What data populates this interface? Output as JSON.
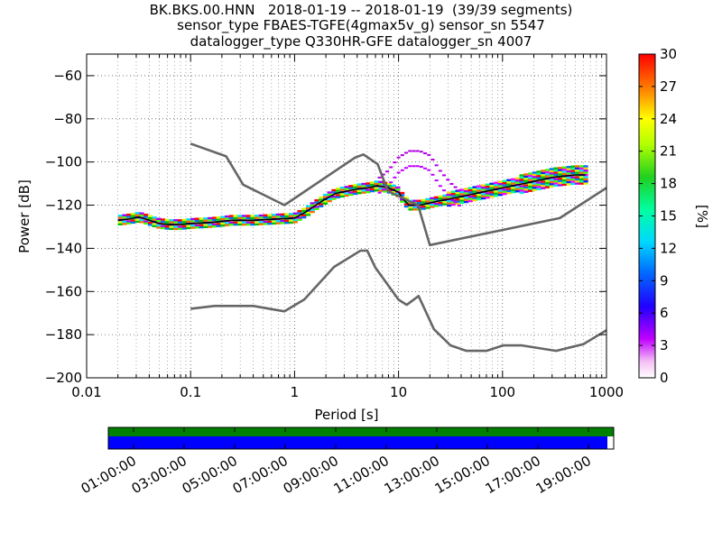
{
  "title": {
    "line1": "BK.BKS.00.HNN   2018-01-19 -- 2018-01-19  (39/39 segments)",
    "line2": "sensor_type FBAES-TGFE(4gmax5v_g) sensor_sn 5547",
    "line3": "datalogger_type Q330HR-GFE datalogger_sn 4007"
  },
  "colors": {
    "model_curves": "#666666",
    "mode_line": "#000000",
    "timeline_coverage_top": "#008000",
    "timeline_coverage_bottom": "#0000ff"
  },
  "chart_data": {
    "type": "heatmap",
    "xlabel": "Period [s]",
    "ylabel": "Power [dB]",
    "xscale": "log",
    "xlim": [
      0.01,
      1000
    ],
    "ylim": [
      -200,
      -50
    ],
    "xticks": [
      {
        "value": 0.01,
        "label": "0.01"
      },
      {
        "value": 0.1,
        "label": "0.1"
      },
      {
        "value": 1,
        "label": "1"
      },
      {
        "value": 10,
        "label": "10"
      },
      {
        "value": 100,
        "label": "100"
      },
      {
        "value": 1000,
        "label": "1000"
      }
    ],
    "yticks": [
      {
        "value": -60,
        "label": "−60"
      },
      {
        "value": -80,
        "label": "−80"
      },
      {
        "value": -100,
        "label": "−100"
      },
      {
        "value": -120,
        "label": "−120"
      },
      {
        "value": -140,
        "label": "−140"
      },
      {
        "value": -160,
        "label": "−160"
      },
      {
        "value": -180,
        "label": "−180"
      },
      {
        "value": -200,
        "label": "−200"
      }
    ],
    "grid": true,
    "colorbar": {
      "label": "[%]",
      "range": [
        0,
        30
      ],
      "ticks": [
        {
          "value": 0,
          "label": "0"
        },
        {
          "value": 3,
          "label": "3"
        },
        {
          "value": 6,
          "label": "6"
        },
        {
          "value": 9,
          "label": "9"
        },
        {
          "value": 12,
          "label": "12"
        },
        {
          "value": 15,
          "label": "15"
        },
        {
          "value": 18,
          "label": "18"
        },
        {
          "value": 21,
          "label": "21"
        },
        {
          "value": 24,
          "label": "24"
        },
        {
          "value": 27,
          "label": "27"
        },
        {
          "value": 30,
          "label": "30"
        }
      ]
    },
    "new_high_noise_model": [
      [
        0.1,
        -91.5
      ],
      [
        0.22,
        -97.4
      ],
      [
        0.32,
        -110.5
      ],
      [
        0.8,
        -120
      ],
      [
        3.8,
        -98
      ],
      [
        4.6,
        -96.5
      ],
      [
        6.3,
        -101
      ],
      [
        7.9,
        -113.5
      ],
      [
        15.4,
        -120
      ],
      [
        20,
        -138.5
      ],
      [
        354.8,
        -126
      ],
      [
        1000,
        -112
      ]
    ],
    "new_low_noise_model": [
      [
        0.1,
        -168
      ],
      [
        0.17,
        -166.7
      ],
      [
        0.4,
        -166.7
      ],
      [
        0.8,
        -169.2
      ],
      [
        1.24,
        -163.7
      ],
      [
        2.4,
        -148.6
      ],
      [
        4.3,
        -141.1
      ],
      [
        5,
        -141.1
      ],
      [
        6,
        -149
      ],
      [
        10,
        -163.8
      ],
      [
        12,
        -166.2
      ],
      [
        15.6,
        -162.1
      ],
      [
        21.9,
        -177.5
      ],
      [
        31.6,
        -185
      ],
      [
        45,
        -187.5
      ],
      [
        70,
        -187.5
      ],
      [
        101,
        -185
      ],
      [
        154,
        -185
      ],
      [
        328,
        -187.5
      ],
      [
        600,
        -184.4
      ],
      [
        1000,
        -178
      ]
    ],
    "mode_curve": [
      [
        0.02,
        -127
      ],
      [
        0.025,
        -126.5
      ],
      [
        0.032,
        -125.5
      ],
      [
        0.04,
        -127
      ],
      [
        0.05,
        -128.5
      ],
      [
        0.063,
        -129
      ],
      [
        0.08,
        -129
      ],
      [
        0.1,
        -128.5
      ],
      [
        0.16,
        -128
      ],
      [
        0.25,
        -127
      ],
      [
        0.4,
        -127
      ],
      [
        0.63,
        -126.5
      ],
      [
        1,
        -126
      ],
      [
        1.3,
        -123
      ],
      [
        1.6,
        -120
      ],
      [
        2,
        -117
      ],
      [
        2.5,
        -114.5
      ],
      [
        3.2,
        -113.5
      ],
      [
        4,
        -112.5
      ],
      [
        5,
        -112
      ],
      [
        6.3,
        -111
      ],
      [
        8,
        -112
      ],
      [
        10,
        -114
      ],
      [
        11,
        -117
      ],
      [
        12.6,
        -120
      ],
      [
        16,
        -120
      ],
      [
        20,
        -119
      ],
      [
        25,
        -118
      ],
      [
        32,
        -117
      ],
      [
        40,
        -116
      ],
      [
        50,
        -115
      ],
      [
        63,
        -114
      ],
      [
        80,
        -113
      ],
      [
        100,
        -112
      ],
      [
        126,
        -111
      ],
      [
        160,
        -110
      ],
      [
        200,
        -109
      ],
      [
        250,
        -108
      ],
      [
        316,
        -107
      ],
      [
        400,
        -106.5
      ],
      [
        500,
        -106
      ],
      [
        630,
        -106
      ]
    ],
    "secondary_mode_curve": [
      [
        6.3,
        -108
      ],
      [
        8,
        -104
      ],
      [
        10,
        -98
      ],
      [
        12.6,
        -95
      ],
      [
        16,
        -95
      ],
      [
        20,
        -97
      ],
      [
        25,
        -104
      ],
      [
        32,
        -110
      ],
      [
        40,
        -114
      ]
    ],
    "timeline": {
      "tick_labels": [
        "01:00:00",
        "03:00:00",
        "05:00:00",
        "07:00:00",
        "09:00:00",
        "11:00:00",
        "13:00:00",
        "15:00:00",
        "17:00:00",
        "19:00:00"
      ],
      "tick_hours": [
        1,
        3,
        5,
        7,
        9,
        11,
        13,
        15,
        17,
        19
      ],
      "start_hour": 0,
      "end_hour": 20,
      "coverage_top_end_hour": 20,
      "coverage_bottom_end_hour": 19.75
    }
  }
}
